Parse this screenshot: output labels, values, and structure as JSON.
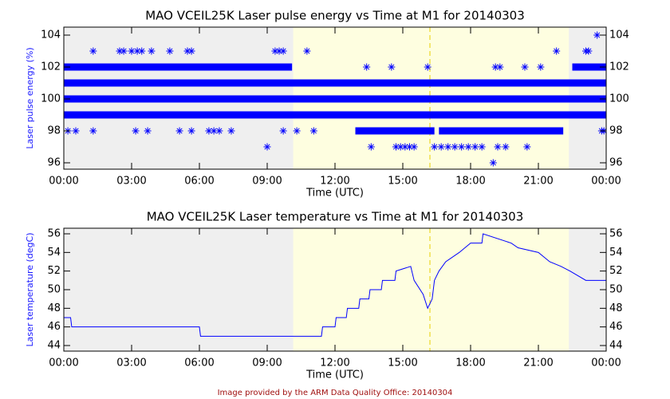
{
  "chart_data": [
    {
      "type": "scatter",
      "title": "MAO VCEIL25K Laser pulse energy vs Time at M1 for 20140303",
      "xlabel": "Time (UTC)",
      "ylabel": "Laser pulse energy (%)",
      "xlim": [
        0,
        24
      ],
      "xticks": [
        {
          "value": 0,
          "label": "00:00"
        },
        {
          "value": 3,
          "label": "03:00"
        },
        {
          "value": 6,
          "label": "06:00"
        },
        {
          "value": 9,
          "label": "09:00"
        },
        {
          "value": 12,
          "label": "12:00"
        },
        {
          "value": 15,
          "label": "15:00"
        },
        {
          "value": 18,
          "label": "18:00"
        },
        {
          "value": 21,
          "label": "21:00"
        },
        {
          "value": 24,
          "label": "00:00"
        }
      ],
      "ylim": [
        95.6,
        104.5
      ],
      "yticks": [
        96,
        98,
        100,
        102,
        104
      ],
      "color": "#0000ff",
      "daylight": [
        10.15,
        22.35
      ],
      "noon": 16.2,
      "runs": [
        {
          "value": 101,
          "x": [
            0,
            24
          ]
        },
        {
          "value": 100,
          "x": [
            0,
            24
          ]
        },
        {
          "value": 99,
          "x": [
            0,
            24
          ]
        },
        {
          "value": 102,
          "x": [
            0,
            10.1
          ]
        },
        {
          "value": 102,
          "x": [
            22.5,
            24
          ]
        },
        {
          "value": 98,
          "x": [
            12.9,
            16.4
          ]
        },
        {
          "value": 98,
          "x": [
            16.6,
            22.1
          ]
        }
      ],
      "x": [
        1.3,
        2.47,
        2.65,
        3.0,
        3.25,
        3.45,
        3.88,
        4.69,
        5.47,
        5.65,
        9.35,
        9.53,
        9.71,
        10.76,
        21.8,
        23.1,
        23.22,
        23.6,
        0.18,
        0.53,
        1.3,
        3.18,
        3.71,
        5.12,
        5.65,
        6.42,
        6.64,
        6.88,
        7.41,
        9.71,
        10.31,
        11.06,
        9.0,
        13.6,
        14.7,
        14.9,
        15.1,
        15.3,
        15.5,
        16.4,
        16.7,
        17.0,
        17.3,
        17.6,
        17.9,
        18.2,
        18.5,
        19.2,
        19.55,
        20.5,
        19.0,
        13.4,
        14.5,
        16.1,
        19.1,
        19.3,
        20.4,
        21.1,
        23.8,
        23.9
      ],
      "values": [
        103,
        103,
        103,
        103,
        103,
        103,
        103,
        103,
        103,
        103,
        103,
        103,
        103,
        103,
        103,
        103,
        103,
        104,
        98,
        98,
        98,
        98,
        98,
        98,
        98,
        98,
        98,
        98,
        98,
        98,
        98,
        98,
        97,
        97,
        97,
        97,
        97,
        97,
        97,
        97,
        97,
        97,
        97,
        97,
        97,
        97,
        97,
        97,
        97,
        97,
        96,
        102,
        102,
        102,
        102,
        102,
        102,
        102,
        98,
        98
      ]
    },
    {
      "type": "line",
      "title": "MAO VCEIL25K Laser temperature vs Time at M1 for 20140303",
      "xlabel": "Time (UTC)",
      "ylabel": "Laser temperature (degC)",
      "xlim": [
        0,
        24
      ],
      "xticks": [
        {
          "value": 0,
          "label": "00:00"
        },
        {
          "value": 3,
          "label": "03:00"
        },
        {
          "value": 6,
          "label": "06:00"
        },
        {
          "value": 9,
          "label": "09:00"
        },
        {
          "value": 12,
          "label": "12:00"
        },
        {
          "value": 15,
          "label": "15:00"
        },
        {
          "value": 18,
          "label": "18:00"
        },
        {
          "value": 21,
          "label": "21:00"
        },
        {
          "value": 24,
          "label": "00:00"
        }
      ],
      "ylim": [
        43.4,
        56.6
      ],
      "yticks": [
        44,
        46,
        48,
        50,
        52,
        54,
        56
      ],
      "color": "#0000ff",
      "daylight": [
        10.15,
        22.35
      ],
      "noon": 16.2,
      "x": [
        0,
        0.3,
        0.35,
        6.0,
        6.05,
        11.4,
        11.45,
        12.0,
        12.05,
        12.5,
        12.55,
        13.05,
        13.1,
        13.5,
        13.55,
        14.05,
        14.1,
        14.65,
        14.7,
        15.35,
        15.5,
        15.9,
        16.1,
        16.3,
        16.4,
        16.6,
        16.9,
        17.5,
        18.0,
        18.5,
        18.55,
        19.8,
        20.1,
        21.0,
        21.5,
        22.0,
        22.4,
        23.1,
        24
      ],
      "values": [
        47,
        47,
        46,
        46,
        45,
        45,
        46,
        46,
        47,
        47,
        48,
        48,
        49,
        49,
        50,
        50,
        51,
        51,
        52,
        52.5,
        51,
        49.5,
        48,
        49,
        51,
        52,
        53,
        54,
        55,
        55,
        56,
        55,
        54.5,
        54,
        53,
        52.5,
        52,
        51,
        51
      ]
    }
  ],
  "footer": "Image provided by the ARM Data Quality Office: 20140304"
}
